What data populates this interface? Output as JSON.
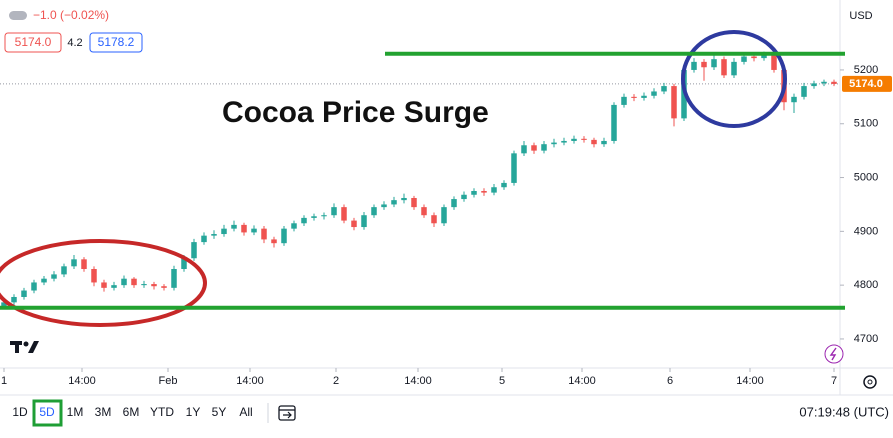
{
  "header": {
    "change": "−1.0 (−0.02%)",
    "bid": "5174.0",
    "spread": "4.2",
    "ask": "5178.2",
    "currency": "USD"
  },
  "toolbar": {
    "ranges": [
      "1D",
      "5D",
      "1M",
      "3M",
      "6M",
      "YTD",
      "1Y",
      "5Y",
      "All"
    ],
    "active_range": 1,
    "clock": "07:19:48 (UTC)"
  },
  "chart_data": {
    "type": "candlestick",
    "annotation": "Cocoa Price Surge",
    "up_color": "#26a69a",
    "down_color": "#ef5350",
    "last": {
      "value": 5174.0,
      "label": "5174.0"
    },
    "last_color": "#f57c00",
    "support": 4758,
    "resistance": 5230,
    "level_color": "#22a230",
    "ylim": [
      4646,
      5330
    ],
    "yticks": [
      5200,
      5100,
      5000,
      4900,
      4800,
      4700
    ],
    "xlim": [
      -0.4,
      83.6
    ],
    "xticks": [
      {
        "value": 0,
        "label": "1"
      },
      {
        "value": 7.8,
        "label": "14:00"
      },
      {
        "value": 16.4,
        "label": "Feb"
      },
      {
        "value": 24.6,
        "label": "14:00"
      },
      {
        "value": 33.2,
        "label": "2"
      },
      {
        "value": 41.4,
        "label": "14:00"
      },
      {
        "value": 49.8,
        "label": "5"
      },
      {
        "value": 57.8,
        "label": "14:00"
      },
      {
        "value": 66.6,
        "label": "6"
      },
      {
        "value": 74.6,
        "label": "14:00"
      },
      {
        "value": 83,
        "label": "7"
      }
    ],
    "candles": [
      [
        4760,
        4774,
        4755,
        4768
      ],
      [
        4768,
        4783,
        4763,
        4778
      ],
      [
        4778,
        4795,
        4773,
        4790
      ],
      [
        4790,
        4810,
        4785,
        4805
      ],
      [
        4805,
        4817,
        4800,
        4812
      ],
      [
        4812,
        4826,
        4807,
        4820
      ],
      [
        4820,
        4840,
        4815,
        4835
      ],
      [
        4835,
        4856,
        4830,
        4848
      ],
      [
        4848,
        4852,
        4825,
        4830
      ],
      [
        4830,
        4835,
        4798,
        4805
      ],
      [
        4805,
        4810,
        4788,
        4795
      ],
      [
        4795,
        4806,
        4790,
        4800
      ],
      [
        4800,
        4818,
        4795,
        4812
      ],
      [
        4812,
        4815,
        4795,
        4800
      ],
      [
        4800,
        4808,
        4795,
        4802
      ],
      [
        4802,
        4806,
        4792,
        4798
      ],
      [
        4798,
        4802,
        4790,
        4795
      ],
      [
        4795,
        4836,
        4790,
        4830
      ],
      [
        4830,
        4856,
        4825,
        4850
      ],
      [
        4850,
        4886,
        4845,
        4880
      ],
      [
        4880,
        4898,
        4875,
        4892
      ],
      [
        4892,
        4902,
        4886,
        4895
      ],
      [
        4895,
        4912,
        4890,
        4905
      ],
      [
        4905,
        4920,
        4900,
        4912
      ],
      [
        4912,
        4916,
        4892,
        4898
      ],
      [
        4898,
        4911,
        4893,
        4905
      ],
      [
        4905,
        4910,
        4878,
        4885
      ],
      [
        4885,
        4890,
        4870,
        4878
      ],
      [
        4878,
        4910,
        4873,
        4905
      ],
      [
        4905,
        4920,
        4900,
        4915
      ],
      [
        4915,
        4930,
        4910,
        4925
      ],
      [
        4925,
        4933,
        4920,
        4928
      ],
      [
        4928,
        4935,
        4922,
        4930
      ],
      [
        4930,
        4952,
        4925,
        4945
      ],
      [
        4945,
        4950,
        4915,
        4920
      ],
      [
        4920,
        4925,
        4902,
        4908
      ],
      [
        4908,
        4936,
        4903,
        4930
      ],
      [
        4930,
        4950,
        4925,
        4945
      ],
      [
        4945,
        4956,
        4940,
        4950
      ],
      [
        4950,
        4964,
        4945,
        4958
      ],
      [
        4958,
        4970,
        4952,
        4962
      ],
      [
        4962,
        4966,
        4940,
        4945
      ],
      [
        4945,
        4950,
        4925,
        4930
      ],
      [
        4930,
        4935,
        4908,
        4915
      ],
      [
        4915,
        4950,
        4910,
        4945
      ],
      [
        4945,
        4965,
        4940,
        4960
      ],
      [
        4960,
        4974,
        4955,
        4968
      ],
      [
        4968,
        4980,
        4963,
        4975
      ],
      [
        4975,
        4980,
        4966,
        4972
      ],
      [
        4972,
        4988,
        4967,
        4982
      ],
      [
        4982,
        4995,
        4977,
        4990
      ],
      [
        4990,
        5050,
        4985,
        5045
      ],
      [
        5045,
        5068,
        5040,
        5060
      ],
      [
        5060,
        5065,
        5044,
        5050
      ],
      [
        5050,
        5068,
        5045,
        5062
      ],
      [
        5062,
        5072,
        5056,
        5065
      ],
      [
        5065,
        5074,
        5060,
        5068
      ],
      [
        5068,
        5078,
        5063,
        5072
      ],
      [
        5072,
        5077,
        5065,
        5070
      ],
      [
        5070,
        5074,
        5056,
        5062
      ],
      [
        5062,
        5074,
        5057,
        5068
      ],
      [
        5068,
        5140,
        5063,
        5135
      ],
      [
        5135,
        5156,
        5130,
        5150
      ],
      [
        5150,
        5155,
        5142,
        5148
      ],
      [
        5148,
        5158,
        5143,
        5152
      ],
      [
        5152,
        5166,
        5147,
        5160
      ],
      [
        5160,
        5176,
        5155,
        5170
      ],
      [
        5170,
        5174,
        5095,
        5110
      ],
      [
        5110,
        5206,
        5105,
        5200
      ],
      [
        5200,
        5222,
        5195,
        5215
      ],
      [
        5215,
        5220,
        5180,
        5205
      ],
      [
        5205,
        5228,
        5200,
        5220
      ],
      [
        5220,
        5225,
        5185,
        5190
      ],
      [
        5190,
        5222,
        5185,
        5215
      ],
      [
        5215,
        5232,
        5210,
        5225
      ],
      [
        5225,
        5230,
        5216,
        5222
      ],
      [
        5222,
        5234,
        5217,
        5228
      ],
      [
        5228,
        5232,
        5195,
        5200
      ],
      [
        5200,
        5205,
        5125,
        5140
      ],
      [
        5140,
        5156,
        5120,
        5150
      ],
      [
        5150,
        5176,
        5145,
        5170
      ],
      [
        5170,
        5180,
        5165,
        5175
      ],
      [
        5175,
        5182,
        5170,
        5178
      ],
      [
        5178,
        5182,
        5170,
        5174
      ]
    ]
  }
}
